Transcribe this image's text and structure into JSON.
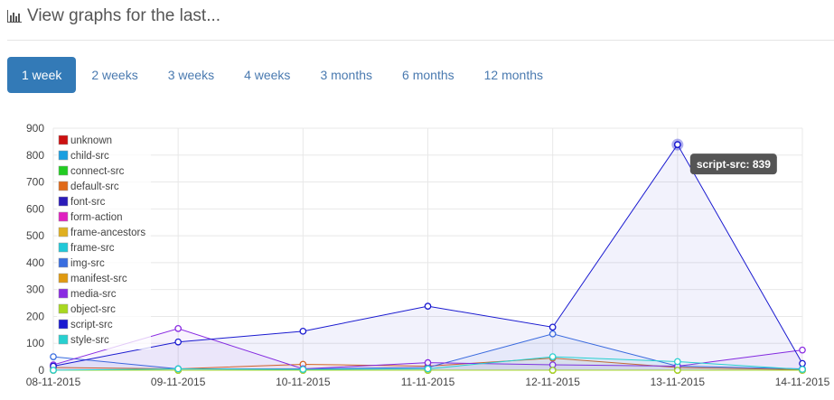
{
  "header": {
    "title": "View graphs for the last...",
    "icon": "bar-chart-icon"
  },
  "tabs": [
    {
      "label": "1 week",
      "active": true
    },
    {
      "label": "2 weeks",
      "active": false
    },
    {
      "label": "3 weeks",
      "active": false
    },
    {
      "label": "4 weeks",
      "active": false
    },
    {
      "label": "3 months",
      "active": false
    },
    {
      "label": "6 months",
      "active": false
    },
    {
      "label": "12 months",
      "active": false
    }
  ],
  "tooltip": {
    "text": "script-src: 839",
    "series": "script-src",
    "index": 5
  },
  "chart_data": {
    "type": "line",
    "title": "",
    "xlabel": "",
    "ylabel": "",
    "ylim": [
      0,
      900
    ],
    "yticks": [
      0,
      100,
      200,
      300,
      400,
      500,
      600,
      700,
      800,
      900
    ],
    "grid": true,
    "legend_position": "top-left",
    "x": [
      "08-11-2015",
      "09-11-2015",
      "10-11-2015",
      "11-11-2015",
      "12-11-2015",
      "13-11-2015",
      "14-11-2015"
    ],
    "series": [
      {
        "name": "unknown",
        "color": "#cc1111",
        "values": [
          0,
          0,
          0,
          0,
          0,
          0,
          0
        ]
      },
      {
        "name": "child-src",
        "color": "#1a9ee0",
        "values": [
          0,
          0,
          0,
          0,
          0,
          0,
          0
        ]
      },
      {
        "name": "connect-src",
        "color": "#22cc22",
        "values": [
          0,
          0,
          0,
          0,
          0,
          0,
          0
        ]
      },
      {
        "name": "default-src",
        "color": "#e06a1a",
        "values": [
          10,
          5,
          22,
          15,
          45,
          10,
          2
        ]
      },
      {
        "name": "font-src",
        "color": "#2a1ab8",
        "values": [
          0,
          0,
          0,
          0,
          0,
          0,
          0
        ]
      },
      {
        "name": "form-action",
        "color": "#e020c0",
        "values": [
          0,
          0,
          0,
          0,
          0,
          0,
          0
        ]
      },
      {
        "name": "frame-ancestors",
        "color": "#e0b020",
        "values": [
          0,
          0,
          0,
          0,
          0,
          0,
          0
        ]
      },
      {
        "name": "frame-src",
        "color": "#20c8d8",
        "values": [
          0,
          0,
          0,
          0,
          0,
          0,
          0
        ]
      },
      {
        "name": "img-src",
        "color": "#3a6ee0",
        "values": [
          50,
          5,
          5,
          10,
          135,
          15,
          5
        ]
      },
      {
        "name": "manifest-src",
        "color": "#e09a10",
        "values": [
          0,
          0,
          0,
          0,
          0,
          0,
          0
        ]
      },
      {
        "name": "media-src",
        "color": "#8a2be2",
        "values": [
          20,
          155,
          5,
          28,
          20,
          15,
          75
        ]
      },
      {
        "name": "object-src",
        "color": "#a8d820",
        "values": [
          0,
          0,
          0,
          0,
          0,
          0,
          0
        ]
      },
      {
        "name": "script-src",
        "color": "#1a1ad0",
        "values": [
          15,
          105,
          145,
          238,
          160,
          839,
          25
        ]
      },
      {
        "name": "style-src",
        "color": "#28d0d0",
        "values": [
          0,
          5,
          3,
          5,
          50,
          32,
          3
        ]
      }
    ]
  }
}
